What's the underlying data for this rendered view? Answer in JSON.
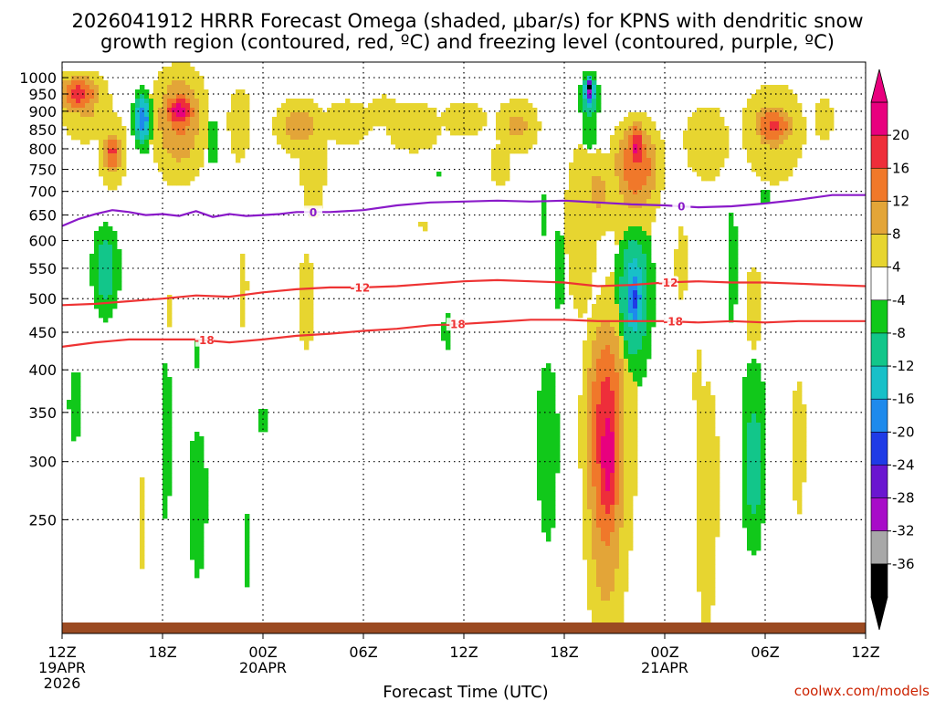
{
  "chart_data": {
    "type": "heatmap",
    "title_line1": "2026041912 HRRR Forecast Omega (shaded, μbar/s) for KPNS with dendritic snow",
    "title_line2": "growth region (contoured, red, ºC) and freezing level (contoured, purple, ºC)",
    "xlabel": "Forecast Time (UTC)",
    "credit": "coolwx.com/models",
    "x_hours_range": [
      0,
      48
    ],
    "y_pressure_range": [
      1050,
      175
    ],
    "x_ticks": [
      {
        "hour": 0,
        "l1": "12Z",
        "l2": "19APR",
        "l3": "2026"
      },
      {
        "hour": 6,
        "l1": "18Z",
        "l2": "",
        "l3": ""
      },
      {
        "hour": 12,
        "l1": "00Z",
        "l2": "20APR",
        "l3": ""
      },
      {
        "hour": 18,
        "l1": "06Z",
        "l2": "",
        "l3": ""
      },
      {
        "hour": 24,
        "l1": "12Z",
        "l2": "",
        "l3": ""
      },
      {
        "hour": 30,
        "l1": "18Z",
        "l2": "",
        "l3": ""
      },
      {
        "hour": 36,
        "l1": "00Z",
        "l2": "21APR",
        "l3": ""
      },
      {
        "hour": 42,
        "l1": "06Z",
        "l2": "",
        "l3": ""
      },
      {
        "hour": 48,
        "l1": "12Z",
        "l2": "",
        "l3": ""
      }
    ],
    "y_ticks": [
      250,
      300,
      350,
      400,
      450,
      500,
      550,
      600,
      650,
      700,
      750,
      800,
      850,
      900,
      950,
      1000
    ],
    "colorbar": [
      {
        "lo": 20,
        "hi": 24,
        "color": "#e8007e"
      },
      {
        "lo": 16,
        "hi": 20,
        "color": "#ee2e3a"
      },
      {
        "lo": 12,
        "hi": 16,
        "color": "#f0782a"
      },
      {
        "lo": 8,
        "hi": 12,
        "color": "#e3a538"
      },
      {
        "lo": 4,
        "hi": 8,
        "color": "#e7d530"
      },
      {
        "lo": -4,
        "hi": 4,
        "color": "#ffffff"
      },
      {
        "lo": -8,
        "hi": -4,
        "color": "#11c81a"
      },
      {
        "lo": -12,
        "hi": -8,
        "color": "#12c68a"
      },
      {
        "lo": -16,
        "hi": -12,
        "color": "#18c0c8"
      },
      {
        "lo": -20,
        "hi": -16,
        "color": "#1e8aec"
      },
      {
        "lo": -24,
        "hi": -20,
        "color": "#1f3be6"
      },
      {
        "lo": -28,
        "hi": -24,
        "color": "#6a16d0"
      },
      {
        "lo": -32,
        "hi": -28,
        "color": "#a80cc8"
      },
      {
        "lo": -36,
        "hi": -32,
        "color": "#a8a8a8"
      },
      {
        "lo": -40,
        "hi": -36,
        "color": "#000000"
      }
    ],
    "colorbar_labels": [
      "20",
      "16",
      "12",
      "8",
      "4",
      "-4",
      "-8",
      "-12",
      "-16",
      "-20",
      "-24",
      "-28",
      "-32",
      "-36"
    ],
    "blobs": [
      {
        "t": 1.0,
        "p": 950,
        "rt": 1.2,
        "rp": 60,
        "v": 18
      },
      {
        "t": 1.4,
        "p": 920,
        "rt": 1.6,
        "rp": 110,
        "v": 9
      },
      {
        "t": 3.0,
        "p": 790,
        "rt": 0.6,
        "rp": 55,
        "v": 17
      },
      {
        "t": 3.0,
        "p": 800,
        "rt": 1.0,
        "rp": 110,
        "v": 8
      },
      {
        "t": 7.0,
        "p": 900,
        "rt": 1.0,
        "rp": 55,
        "v": 22
      },
      {
        "t": 7.0,
        "p": 880,
        "rt": 1.6,
        "rp": 150,
        "v": 13
      },
      {
        "t": 4.8,
        "p": 880,
        "rt": 0.5,
        "rp": 70,
        "v": -20
      },
      {
        "t": 4.8,
        "p": 870,
        "rt": 0.45,
        "rp": 95,
        "v": -7
      },
      {
        "t": 2.6,
        "p": 550,
        "rt": 0.8,
        "rp": 75,
        "v": -12
      },
      {
        "t": 0.8,
        "p": 360,
        "rt": 0.5,
        "rp": 50,
        "v": -7
      },
      {
        "t": 6.2,
        "p": 330,
        "rt": 0.4,
        "rp": 100,
        "v": -7
      },
      {
        "t": 8.1,
        "p": 270,
        "rt": 0.6,
        "rp": 70,
        "v": -8
      },
      {
        "t": 8.1,
        "p": 420,
        "rt": 0.3,
        "rp": 30,
        "v": -6
      },
      {
        "t": 9.0,
        "p": 820,
        "rt": 0.4,
        "rp": 60,
        "v": -8
      },
      {
        "t": 11.0,
        "p": 230,
        "rt": 0.3,
        "rp": 40,
        "v": -6
      },
      {
        "t": 12.0,
        "p": 340,
        "rt": 0.3,
        "rp": 25,
        "v": -6
      },
      {
        "t": 4.8,
        "p": 250,
        "rt": 0.4,
        "rp": 70,
        "v": 5
      },
      {
        "t": 6.4,
        "p": 480,
        "rt": 0.5,
        "rp": 50,
        "v": 5
      },
      {
        "t": 10.8,
        "p": 520,
        "rt": 0.5,
        "rp": 120,
        "v": 5
      },
      {
        "t": 10.6,
        "p": 870,
        "rt": 1.0,
        "rp": 150,
        "v": 6
      },
      {
        "t": 14.6,
        "p": 500,
        "rt": 1.0,
        "rp": 150,
        "v": 5
      },
      {
        "t": 15.0,
        "p": 780,
        "rt": 1.2,
        "rp": 200,
        "v": 6
      },
      {
        "t": 14.2,
        "p": 860,
        "rt": 1.6,
        "rp": 80,
        "v": 10
      },
      {
        "t": 17.0,
        "p": 870,
        "rt": 2.2,
        "rp": 90,
        "v": 6
      },
      {
        "t": 19.2,
        "p": 900,
        "rt": 1.2,
        "rp": 50,
        "v": 8
      },
      {
        "t": 21.0,
        "p": 860,
        "rt": 2.5,
        "rp": 100,
        "v": 6
      },
      {
        "t": 24.0,
        "p": 880,
        "rt": 2.0,
        "rp": 70,
        "v": 6
      },
      {
        "t": 27.2,
        "p": 860,
        "rt": 1.4,
        "rp": 80,
        "v": 9
      },
      {
        "t": 26.2,
        "p": 760,
        "rt": 1.2,
        "rp": 100,
        "v": 5
      },
      {
        "t": 21.6,
        "p": 630,
        "rt": 0.5,
        "rp": 20,
        "v": 5
      },
      {
        "t": 23.0,
        "p": 450,
        "rt": 0.4,
        "rp": 40,
        "v": -6
      },
      {
        "t": 24.0,
        "p": 255,
        "rt": 0.15,
        "rp": 40,
        "v": -6
      },
      {
        "t": 22.5,
        "p": 740,
        "rt": 0.3,
        "rp": 15,
        "v": -6
      },
      {
        "t": 29.0,
        "p": 320,
        "rt": 0.8,
        "rp": 110,
        "v": -7
      },
      {
        "t": 29.7,
        "p": 550,
        "rt": 0.4,
        "rp": 90,
        "v": -7
      },
      {
        "t": 28.8,
        "p": 650,
        "rt": 0.2,
        "rp": 60,
        "v": -6
      },
      {
        "t": 32.5,
        "p": 330,
        "rt": 1.2,
        "rp": 140,
        "v": 19
      },
      {
        "t": 32.6,
        "p": 310,
        "rt": 0.8,
        "rp": 90,
        "v": 23
      },
      {
        "t": 33.0,
        "p": 360,
        "rt": 1.8,
        "rp": 230,
        "v": 7
      },
      {
        "t": 34.2,
        "p": 510,
        "rt": 1.0,
        "rp": 110,
        "v": -15
      },
      {
        "t": 34.2,
        "p": 500,
        "rt": 0.55,
        "rp": 60,
        "v": -21
      },
      {
        "t": 31.0,
        "p": 640,
        "rt": 1.4,
        "rp": 250,
        "v": 6
      },
      {
        "t": 32.0,
        "p": 700,
        "rt": 1.2,
        "rp": 100,
        "v": 9
      },
      {
        "t": 34.3,
        "p": 760,
        "rt": 1.4,
        "rp": 110,
        "v": 16
      },
      {
        "t": 34.3,
        "p": 800,
        "rt": 0.6,
        "rp": 70,
        "v": 21
      },
      {
        "t": 34.0,
        "p": 720,
        "rt": 2.4,
        "rp": 220,
        "v": 6
      },
      {
        "t": 31.5,
        "p": 940,
        "rt": 0.5,
        "rp": 70,
        "v": -15
      },
      {
        "t": 31.5,
        "p": 960,
        "rt": 0.3,
        "rp": 40,
        "v": -30
      },
      {
        "t": 31.5,
        "p": 970,
        "rt": 0.2,
        "rp": 25,
        "v": -37
      },
      {
        "t": 31.5,
        "p": 900,
        "rt": 0.6,
        "rp": 120,
        "v": -8
      },
      {
        "t": 38.5,
        "p": 280,
        "rt": 0.8,
        "rp": 120,
        "v": 8
      },
      {
        "t": 38.0,
        "p": 380,
        "rt": 0.5,
        "rp": 90,
        "v": 5
      },
      {
        "t": 41.3,
        "p": 300,
        "rt": 0.7,
        "rp": 70,
        "v": -12
      },
      {
        "t": 41.3,
        "p": 320,
        "rt": 1.0,
        "rp": 120,
        "v": -7
      },
      {
        "t": 44.0,
        "p": 320,
        "rt": 0.8,
        "rp": 130,
        "v": 5
      },
      {
        "t": 41.3,
        "p": 490,
        "rt": 0.6,
        "rp": 80,
        "v": 7
      },
      {
        "t": 40.0,
        "p": 560,
        "rt": 0.4,
        "rp": 120,
        "v": -7
      },
      {
        "t": 42.0,
        "p": 690,
        "rt": 0.2,
        "rp": 40,
        "v": -7
      },
      {
        "t": 45.0,
        "p": 710,
        "rt": 0.15,
        "rp": 30,
        "v": -6
      },
      {
        "t": 38.5,
        "p": 820,
        "rt": 1.5,
        "rp": 110,
        "v": 8
      },
      {
        "t": 42.5,
        "p": 860,
        "rt": 1.2,
        "rp": 60,
        "v": 17
      },
      {
        "t": 42.5,
        "p": 850,
        "rt": 2.0,
        "rp": 140,
        "v": 9
      },
      {
        "t": 45.5,
        "p": 880,
        "rt": 0.8,
        "rp": 90,
        "v": 6
      },
      {
        "t": 37.0,
        "p": 560,
        "rt": 0.7,
        "rp": 130,
        "v": 5
      }
    ],
    "contours": [
      {
        "value": "-18",
        "color": "#ee3333",
        "label_hours": [
          8.5,
          23.5,
          36.5
        ],
        "points": [
          [
            0,
            430
          ],
          [
            2,
            436
          ],
          [
            4,
            440
          ],
          [
            6,
            440
          ],
          [
            8,
            440
          ],
          [
            10,
            436
          ],
          [
            12,
            440
          ],
          [
            14,
            445
          ],
          [
            16,
            448
          ],
          [
            18,
            452
          ],
          [
            20,
            455
          ],
          [
            22,
            460
          ],
          [
            24,
            462
          ],
          [
            26,
            465
          ],
          [
            28,
            468
          ],
          [
            30,
            468
          ],
          [
            32,
            466
          ],
          [
            34,
            466
          ],
          [
            36,
            466
          ],
          [
            38,
            464
          ],
          [
            40,
            466
          ],
          [
            42,
            464
          ],
          [
            44,
            466
          ],
          [
            46,
            466
          ],
          [
            48,
            466
          ]
        ]
      },
      {
        "value": "-12",
        "color": "#ee3333",
        "label_hours": [
          17.8,
          36.2
        ],
        "points": [
          [
            0,
            490
          ],
          [
            2,
            492
          ],
          [
            4,
            496
          ],
          [
            6,
            500
          ],
          [
            8,
            505
          ],
          [
            10,
            503
          ],
          [
            12,
            510
          ],
          [
            14,
            515
          ],
          [
            16,
            518
          ],
          [
            18,
            518
          ],
          [
            20,
            520
          ],
          [
            22,
            524
          ],
          [
            24,
            528
          ],
          [
            26,
            530
          ],
          [
            28,
            528
          ],
          [
            30,
            526
          ],
          [
            32,
            520
          ],
          [
            34,
            522
          ],
          [
            36,
            526
          ],
          [
            38,
            528
          ],
          [
            40,
            526
          ],
          [
            42,
            526
          ],
          [
            44,
            524
          ],
          [
            46,
            522
          ],
          [
            48,
            520
          ]
        ]
      },
      {
        "value": "0",
        "color": "#8a1ac9",
        "label_hours": [
          15.0,
          37.0
        ],
        "points": [
          [
            0,
            628
          ],
          [
            1,
            642
          ],
          [
            2,
            652
          ],
          [
            3,
            660
          ],
          [
            4,
            656
          ],
          [
            5,
            650
          ],
          [
            6,
            652
          ],
          [
            7,
            648
          ],
          [
            8,
            658
          ],
          [
            9,
            646
          ],
          [
            10,
            652
          ],
          [
            11,
            648
          ],
          [
            12,
            650
          ],
          [
            13,
            652
          ],
          [
            14,
            656
          ],
          [
            16,
            656
          ],
          [
            18,
            660
          ],
          [
            20,
            670
          ],
          [
            22,
            676
          ],
          [
            24,
            678
          ],
          [
            26,
            680
          ],
          [
            28,
            678
          ],
          [
            30,
            680
          ],
          [
            32,
            676
          ],
          [
            34,
            672
          ],
          [
            36,
            670
          ],
          [
            38,
            666
          ],
          [
            40,
            668
          ],
          [
            42,
            674
          ],
          [
            44,
            682
          ],
          [
            46,
            692
          ],
          [
            48,
            692
          ]
        ]
      }
    ]
  }
}
